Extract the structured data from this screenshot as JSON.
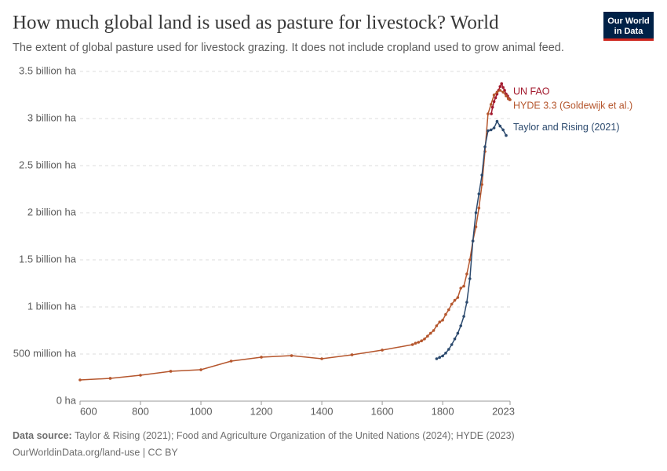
{
  "chart_data": {
    "type": "line",
    "title": "How much global land is used as pasture for livestock? World",
    "subtitle": "The extent of global pasture used for livestock grazing. It does not include cropland used to grow animal feed.",
    "source_label": "Data source:",
    "source": "Taylor & Rising (2021); Food and Agriculture Organization of the United Nations (2024); HYDE (2023)",
    "footer": "OurWorldinData.org/land-use | CC BY",
    "logo": [
      "Our World",
      "in Data"
    ],
    "xlim": [
      600,
      2023
    ],
    "xticks": [
      600,
      800,
      1000,
      1200,
      1400,
      1600,
      1800,
      2023
    ],
    "ylim": [
      0,
      3500000000
    ],
    "yticks": [
      {
        "value": 0,
        "label": "0 ha"
      },
      {
        "value": 500000000,
        "label": "500 million ha"
      },
      {
        "value": 1000000000,
        "label": "1 billion ha"
      },
      {
        "value": 1500000000,
        "label": "1.5 billion ha"
      },
      {
        "value": 2000000000,
        "label": "2 billion ha"
      },
      {
        "value": 2500000000,
        "label": "2.5 billion ha"
      },
      {
        "value": 3000000000,
        "label": "3 billion ha"
      },
      {
        "value": 3500000000,
        "label": "3.5 billion ha"
      }
    ],
    "grid": true,
    "series": [
      {
        "name": "UN FAO",
        "color": "#a2182c",
        "x": [
          1961,
          1965,
          1970,
          1975,
          1980,
          1985,
          1990,
          1995,
          2000,
          2005,
          2010,
          2015,
          2020,
          2022
        ],
        "values": [
          3050000000,
          3120000000,
          3180000000,
          3220000000,
          3260000000,
          3300000000,
          3340000000,
          3370000000,
          3330000000,
          3300000000,
          3260000000,
          3240000000,
          3210000000,
          3200000000
        ]
      },
      {
        "name": "HYDE 3.3 (Goldewijk et al.)",
        "color": "#b5562d",
        "x": [
          600,
          700,
          800,
          900,
          1000,
          1100,
          1200,
          1300,
          1400,
          1500,
          1600,
          1700,
          1710,
          1720,
          1730,
          1740,
          1750,
          1760,
          1770,
          1780,
          1790,
          1800,
          1810,
          1820,
          1830,
          1840,
          1850,
          1860,
          1870,
          1880,
          1890,
          1900,
          1910,
          1920,
          1930,
          1940,
          1950,
          1960,
          1970,
          1980,
          1990,
          2000,
          2010,
          2017,
          2023
        ],
        "values": [
          225000000,
          242000000,
          275000000,
          317000000,
          333000000,
          425000000,
          467000000,
          483000000,
          450000000,
          492000000,
          542000000,
          600000000,
          615000000,
          625000000,
          640000000,
          660000000,
          690000000,
          720000000,
          750000000,
          800000000,
          840000000,
          860000000,
          920000000,
          970000000,
          1030000000,
          1070000000,
          1100000000,
          1200000000,
          1220000000,
          1350000000,
          1500000000,
          1700000000,
          1850000000,
          2050000000,
          2300000000,
          2650000000,
          3050000000,
          3150000000,
          3250000000,
          3280000000,
          3300000000,
          3280000000,
          3240000000,
          3210000000,
          3200000000
        ]
      },
      {
        "name": "Taylor and Rising (2021)",
        "color": "#2c4a6e",
        "x": [
          1780,
          1790,
          1800,
          1810,
          1820,
          1830,
          1840,
          1850,
          1860,
          1870,
          1880,
          1890,
          1900,
          1910,
          1920,
          1930,
          1940,
          1950,
          1960,
          1970,
          1980,
          1990,
          2000,
          2010
        ],
        "values": [
          450000000,
          465000000,
          480000000,
          510000000,
          550000000,
          600000000,
          660000000,
          720000000,
          800000000,
          900000000,
          1050000000,
          1300000000,
          1700000000,
          2000000000,
          2200000000,
          2400000000,
          2700000000,
          2870000000,
          2880000000,
          2900000000,
          2970000000,
          2920000000,
          2880000000,
          2820000000
        ]
      }
    ]
  }
}
